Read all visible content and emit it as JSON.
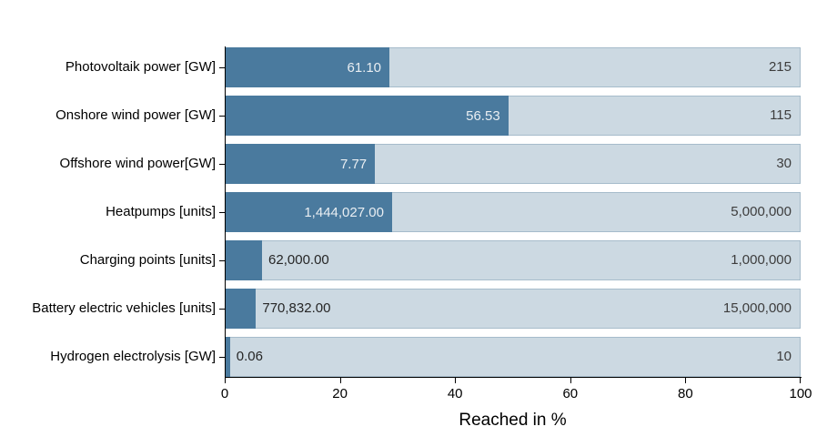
{
  "chart_data": {
    "type": "bar",
    "orientation": "horizontal",
    "title": "",
    "xlabel": "Reached in %",
    "ylabel": "",
    "xlim": [
      0,
      100
    ],
    "x_ticks": [
      "0",
      "20",
      "40",
      "60",
      "80",
      "100"
    ],
    "grid": false,
    "legend": "none",
    "categories": [
      "Photovoltaik power [GW]",
      "Onshore wind power [GW]",
      "Offshore wind power[GW]",
      "Heatpumps [units]",
      "Charging points [units]",
      "Battery electric vehicles [units]",
      "Hydrogen electrolysis [GW]"
    ],
    "series": [
      {
        "name": "Reached",
        "values": [
          61.1,
          56.53,
          7.77,
          1444027.0,
          62000.0,
          770832.0,
          0.06
        ]
      },
      {
        "name": "Target",
        "values": [
          215,
          115,
          30,
          5000000,
          1000000,
          15000000,
          10
        ]
      }
    ],
    "rows": [
      {
        "label": "Photovoltaik power [GW]",
        "reached": "61.10",
        "target": "215",
        "reached_value": 61.1,
        "target_value": 215
      },
      {
        "label": "Onshore wind power [GW]",
        "reached": "56.53",
        "target": "115",
        "reached_value": 56.53,
        "target_value": 115
      },
      {
        "label": "Offshore wind power[GW]",
        "reached": "7.77",
        "target": "30",
        "reached_value": 7.77,
        "target_value": 30
      },
      {
        "label": "Heatpumps [units]",
        "reached": "1,444,027.00",
        "target": "5,000,000",
        "reached_value": 1444027,
        "target_value": 5000000
      },
      {
        "label": "Charging points [units]",
        "reached": "62,000.00",
        "target": "1,000,000",
        "reached_value": 62000,
        "target_value": 1000000
      },
      {
        "label": "Battery electric vehicles [units]",
        "reached": "770,832.00",
        "target": "15,000,000",
        "reached_value": 770832,
        "target_value": 15000000
      },
      {
        "label": "Hydrogen electrolysis [GW]",
        "reached": "0.06",
        "target": "10",
        "reached_value": 0.06,
        "target_value": 10
      }
    ]
  },
  "colors": {
    "dark_bar": "#4a7a9e",
    "track_fill": "#ccd9e2",
    "track_border": "#a6bccb",
    "inside_label": "#e9eef2",
    "outside_label": "#262626",
    "target_label": "#3d3d3d",
    "axis": "#000000"
  }
}
